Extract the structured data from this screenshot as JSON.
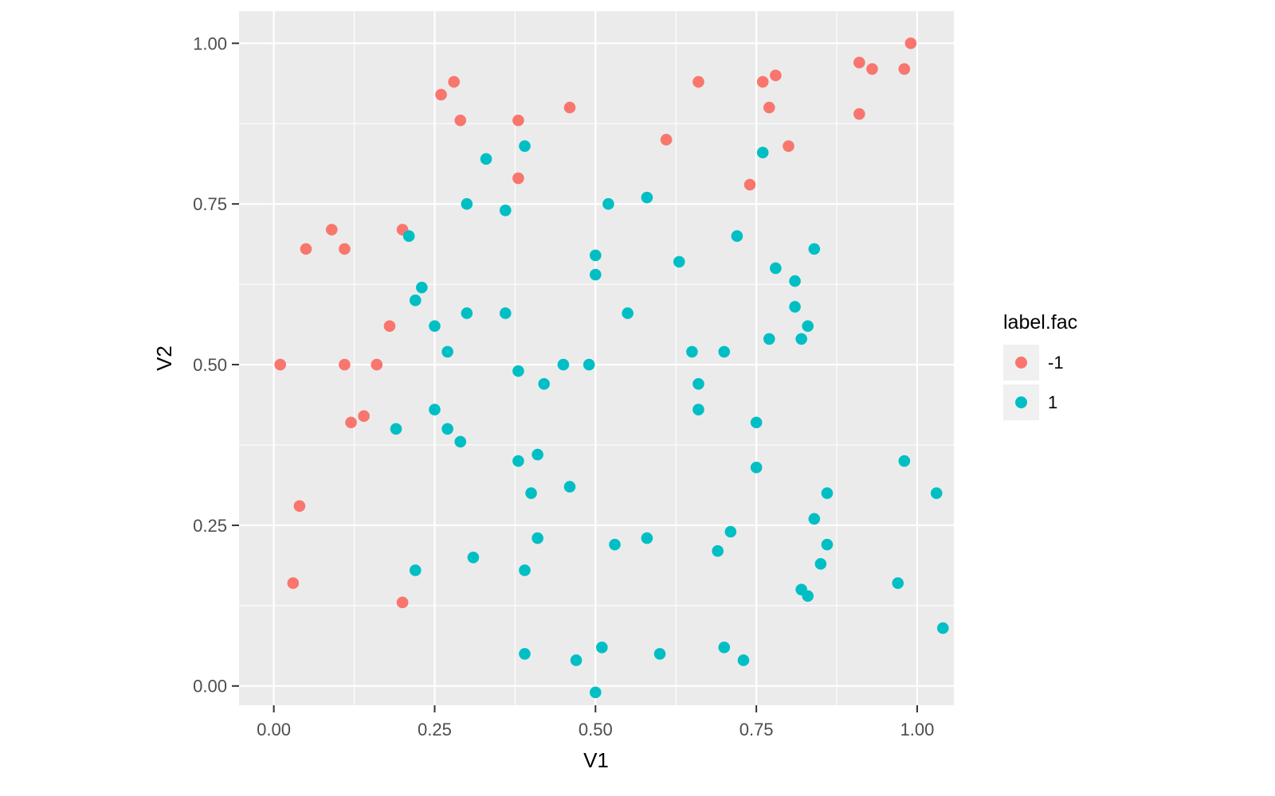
{
  "figure": {
    "background": "#FFFFFF"
  },
  "chart_data": {
    "type": "scatter",
    "title": "",
    "xlabel": "V1",
    "ylabel": "V2",
    "xlim": [
      -0.054,
      1.057
    ],
    "ylim": [
      -0.03,
      1.05
    ],
    "grid": true,
    "panel_background": "#EBEBEB",
    "gridline_color": "#FFFFFF",
    "tick_color": "#333333",
    "tick_label_color": "#4D4D4D",
    "x_ticks": {
      "values": [
        0,
        0.25,
        0.5,
        0.75,
        1
      ],
      "labels": [
        "0.00",
        "0.25",
        "0.50",
        "0.75",
        "1.00"
      ]
    },
    "y_ticks": {
      "values": [
        0,
        0.25,
        0.5,
        0.75,
        1
      ],
      "labels": [
        "0.00",
        "0.25",
        "0.50",
        "0.75",
        "1.00"
      ]
    },
    "x_minor": [
      0.125,
      0.375,
      0.625,
      0.875
    ],
    "y_minor": [
      0.125,
      0.375,
      0.625,
      0.875
    ],
    "legend": {
      "title": "label.fac",
      "position": "right",
      "key_fill": "#F0F0F0",
      "entries": [
        {
          "label": "-1",
          "color": "#F8766D"
        },
        {
          "label": "1",
          "color": "#00BFC4"
        }
      ]
    },
    "series": [
      {
        "name": "-1",
        "color": "#F8766D",
        "points": [
          [
            0.01,
            0.5
          ],
          [
            0.03,
            0.16
          ],
          [
            0.04,
            0.28
          ],
          [
            0.05,
            0.68
          ],
          [
            0.09,
            0.71
          ],
          [
            0.11,
            0.68
          ],
          [
            0.11,
            0.5
          ],
          [
            0.12,
            0.41
          ],
          [
            0.14,
            0.42
          ],
          [
            0.16,
            0.5
          ],
          [
            0.18,
            0.56
          ],
          [
            0.2,
            0.71
          ],
          [
            0.2,
            0.13
          ],
          [
            0.26,
            0.92
          ],
          [
            0.28,
            0.94
          ],
          [
            0.29,
            0.88
          ],
          [
            0.38,
            0.88
          ],
          [
            0.38,
            0.79
          ],
          [
            0.46,
            0.9
          ],
          [
            0.61,
            0.85
          ],
          [
            0.66,
            0.94
          ],
          [
            0.74,
            0.78
          ],
          [
            0.76,
            0.94
          ],
          [
            0.78,
            0.95
          ],
          [
            0.77,
            0.9
          ],
          [
            0.8,
            0.84
          ],
          [
            0.91,
            0.97
          ],
          [
            0.91,
            0.89
          ],
          [
            0.93,
            0.96
          ],
          [
            0.98,
            0.96
          ],
          [
            0.99,
            1.0
          ]
        ]
      },
      {
        "name": "1",
        "color": "#00BFC4",
        "points": [
          [
            0.19,
            0.4
          ],
          [
            0.21,
            0.7
          ],
          [
            0.22,
            0.6
          ],
          [
            0.22,
            0.18
          ],
          [
            0.23,
            0.62
          ],
          [
            0.25,
            0.56
          ],
          [
            0.25,
            0.43
          ],
          [
            0.27,
            0.52
          ],
          [
            0.27,
            0.4
          ],
          [
            0.29,
            0.38
          ],
          [
            0.3,
            0.75
          ],
          [
            0.3,
            0.58
          ],
          [
            0.31,
            0.2
          ],
          [
            0.33,
            0.82
          ],
          [
            0.36,
            0.74
          ],
          [
            0.36,
            0.58
          ],
          [
            0.38,
            0.49
          ],
          [
            0.38,
            0.35
          ],
          [
            0.39,
            0.84
          ],
          [
            0.39,
            0.18
          ],
          [
            0.39,
            0.05
          ],
          [
            0.4,
            0.3
          ],
          [
            0.41,
            0.36
          ],
          [
            0.41,
            0.23
          ],
          [
            0.42,
            0.47
          ],
          [
            0.45,
            0.5
          ],
          [
            0.46,
            0.31
          ],
          [
            0.47,
            0.04
          ],
          [
            0.49,
            0.5
          ],
          [
            0.5,
            0.67
          ],
          [
            0.5,
            0.64
          ],
          [
            0.5,
            -0.01
          ],
          [
            0.51,
            0.06
          ],
          [
            0.52,
            0.75
          ],
          [
            0.53,
            0.22
          ],
          [
            0.55,
            0.58
          ],
          [
            0.58,
            0.76
          ],
          [
            0.58,
            0.23
          ],
          [
            0.6,
            0.05
          ],
          [
            0.63,
            0.66
          ],
          [
            0.65,
            0.52
          ],
          [
            0.66,
            0.47
          ],
          [
            0.66,
            0.43
          ],
          [
            0.69,
            0.21
          ],
          [
            0.7,
            0.52
          ],
          [
            0.7,
            0.06
          ],
          [
            0.71,
            0.24
          ],
          [
            0.72,
            0.7
          ],
          [
            0.73,
            0.04
          ],
          [
            0.75,
            0.41
          ],
          [
            0.75,
            0.34
          ],
          [
            0.76,
            0.83
          ],
          [
            0.77,
            0.54
          ],
          [
            0.78,
            0.65
          ],
          [
            0.81,
            0.63
          ],
          [
            0.81,
            0.59
          ],
          [
            0.82,
            0.54
          ],
          [
            0.82,
            0.15
          ],
          [
            0.83,
            0.56
          ],
          [
            0.83,
            0.14
          ],
          [
            0.84,
            0.68
          ],
          [
            0.84,
            0.26
          ],
          [
            0.85,
            0.19
          ],
          [
            0.86,
            0.3
          ],
          [
            0.86,
            0.22
          ],
          [
            0.97,
            0.16
          ],
          [
            0.98,
            0.35
          ],
          [
            1.03,
            0.3
          ],
          [
            1.04,
            0.09
          ]
        ]
      }
    ]
  }
}
